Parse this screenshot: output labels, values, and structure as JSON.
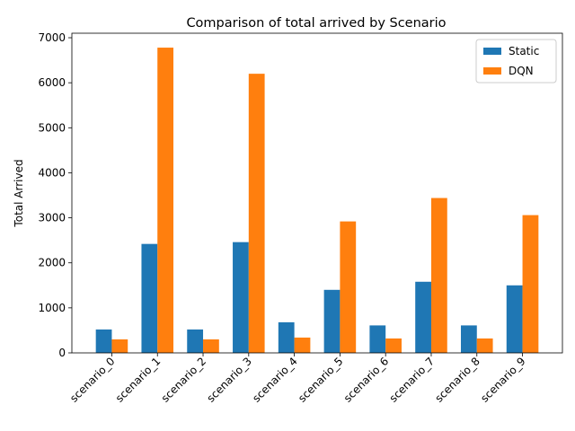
{
  "chart_data": {
    "type": "bar",
    "title": "Comparison of total arrived by Scenario",
    "xlabel": "",
    "ylabel": "Total Arrived",
    "ylim": [
      0,
      7100
    ],
    "yticks": [
      0,
      1000,
      2000,
      3000,
      4000,
      5000,
      6000,
      7000
    ],
    "categories": [
      "scenario_0",
      "scenario_1",
      "scenario_2",
      "scenario_3",
      "scenario_4",
      "scenario_5",
      "scenario_6",
      "scenario_7",
      "scenario_8",
      "scenario_9"
    ],
    "series": [
      {
        "name": "Static",
        "color": "#1f77b4",
        "values": [
          520,
          2420,
          520,
          2460,
          680,
          1400,
          610,
          1580,
          610,
          1500
        ]
      },
      {
        "name": "DQN",
        "color": "#ff7f0e",
        "values": [
          300,
          6780,
          300,
          6200,
          340,
          2920,
          320,
          3440,
          320,
          3060
        ]
      }
    ],
    "legend_position": "top-right",
    "grid": false
  }
}
